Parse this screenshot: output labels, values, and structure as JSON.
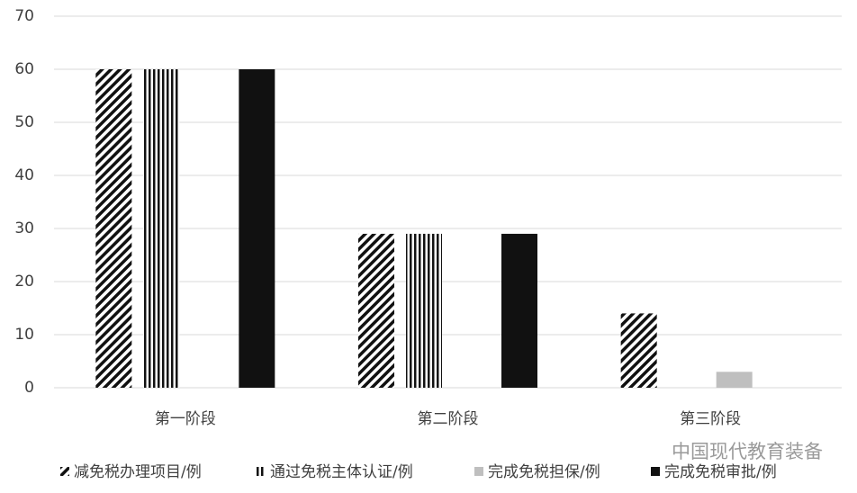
{
  "chart_data": {
    "type": "bar",
    "categories": [
      "第一阶段",
      "第二阶段",
      "第三阶段"
    ],
    "series": [
      {
        "name": "减免税办理项目/例",
        "color": "#111111",
        "pattern": "diagonal",
        "values": [
          60,
          29,
          14
        ]
      },
      {
        "name": "通过免税主体认证/例",
        "color": "#111111",
        "pattern": "vertical",
        "values": [
          60,
          29,
          0
        ]
      },
      {
        "name": "完成免税担保/例",
        "color": "#bfbfbf",
        "pattern": "solid",
        "values": [
          0,
          0,
          3
        ]
      },
      {
        "name": "完成免税审批/例",
        "color": "#111111",
        "pattern": "solid",
        "values": [
          60,
          29,
          0
        ]
      }
    ],
    "ylim": [
      0,
      70
    ],
    "yticks": [
      0,
      10,
      20,
      30,
      40,
      50,
      60,
      70
    ],
    "grid": true,
    "watermark": "中国现代教育装备"
  }
}
